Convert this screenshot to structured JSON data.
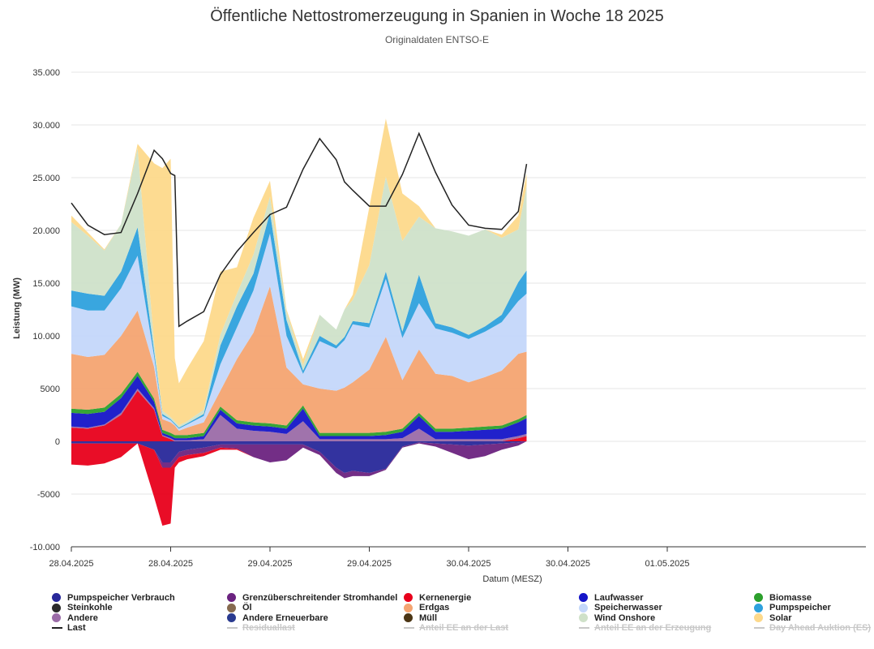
{
  "chart_data": {
    "type": "area",
    "title": "Öffentliche Nettostromerzeugung in Spanien in Woche 18 2025",
    "subtitle": "Originaldaten ENTSO-E",
    "xlabel": "Datum (MESZ)",
    "ylabel": "Leistung (MW)",
    "ylim": [
      -10000,
      35000
    ],
    "xlim": [
      0,
      96
    ],
    "y_ticks": [
      {
        "value": -10000,
        "label": "-10.000"
      },
      {
        "value": -5000,
        "label": "-5000"
      },
      {
        "value": 0,
        "label": "0"
      },
      {
        "value": 5000,
        "label": "5000"
      },
      {
        "value": 10000,
        "label": "10.000"
      },
      {
        "value": 15000,
        "label": "15.000"
      },
      {
        "value": 20000,
        "label": "20.000"
      },
      {
        "value": 25000,
        "label": "25.000"
      },
      {
        "value": 30000,
        "label": "30.000"
      },
      {
        "value": 35000,
        "label": "35.000"
      }
    ],
    "x_ticks": [
      {
        "value": 0,
        "label": "28.04.2025"
      },
      {
        "value": 12,
        "label": "28.04.2025"
      },
      {
        "value": 24,
        "label": "29.04.2025"
      },
      {
        "value": 36,
        "label": "29.04.2025"
      },
      {
        "value": 48,
        "label": "30.04.2025"
      },
      {
        "value": 60,
        "label": "30.04.2025"
      },
      {
        "value": 72,
        "label": "01.05.2025"
      }
    ],
    "x_hours": [
      0,
      2,
      4,
      6,
      8,
      10,
      11,
      12,
      12.5,
      13,
      14,
      16,
      18,
      20,
      22,
      24,
      26,
      28,
      30,
      32,
      33,
      34,
      36,
      38,
      40,
      42,
      44,
      46,
      48,
      50,
      52,
      54,
      55
    ],
    "series_positive": [
      {
        "name": "Kernenergie",
        "color": "#e8001b",
        "values": [
          1300,
          1200,
          1500,
          2500,
          4800,
          3000,
          500,
          200,
          0,
          0,
          0,
          0,
          0,
          0,
          0,
          0,
          0,
          0,
          0,
          0,
          0,
          0,
          0,
          0,
          0,
          0,
          0,
          0,
          0,
          0,
          0,
          300,
          500
        ]
      },
      {
        "name": "Andere",
        "color": "#9b6ca8",
        "values": [
          100,
          100,
          100,
          200,
          200,
          150,
          100,
          100,
          100,
          100,
          100,
          200,
          2500,
          1200,
          1000,
          900,
          700,
          1900,
          200,
          200,
          200,
          200,
          200,
          200,
          300,
          1200,
          200,
          200,
          200,
          200,
          200,
          200,
          200
        ]
      },
      {
        "name": "Laufwasser",
        "color": "#1515c8",
        "values": [
          1300,
          1300,
          1200,
          1400,
          1200,
          600,
          200,
          200,
          200,
          200,
          200,
          300,
          500,
          500,
          500,
          500,
          500,
          1200,
          300,
          300,
          300,
          300,
          300,
          400,
          600,
          1200,
          700,
          700,
          800,
          900,
          1000,
          1300,
          1500
        ]
      },
      {
        "name": "Biomasse",
        "color": "#2ca02c",
        "values": [
          400,
          400,
          400,
          400,
          400,
          300,
          300,
          300,
          300,
          300,
          300,
          300,
          300,
          300,
          300,
          300,
          300,
          300,
          300,
          300,
          300,
          300,
          300,
          300,
          300,
          300,
          300,
          300,
          300,
          300,
          300,
          300,
          300
        ]
      },
      {
        "name": "Erdgas",
        "color": "#f4a471",
        "values": [
          5200,
          5000,
          5000,
          5500,
          5800,
          3000,
          1000,
          1000,
          900,
          400,
          700,
          1000,
          1500,
          5800,
          8500,
          13000,
          5500,
          2000,
          4200,
          4000,
          4300,
          4800,
          6000,
          9000,
          4600,
          6000,
          5200,
          5000,
          4300,
          4700,
          5200,
          6200,
          6000
        ]
      },
      {
        "name": "Speicherwasser",
        "color": "#c4d7fa",
        "values": [
          4500,
          4400,
          4200,
          4500,
          5200,
          1000,
          300,
          200,
          100,
          200,
          300,
          600,
          2500,
          3000,
          4000,
          5000,
          3000,
          1000,
          4500,
          4000,
          4500,
          5500,
          4000,
          5500,
          4000,
          4400,
          4300,
          4100,
          4100,
          4300,
          4600,
          5000,
          5500
        ]
      },
      {
        "name": "Pumpspeicher",
        "color": "#2ea1dd",
        "values": [
          1500,
          1600,
          1400,
          1600,
          2700,
          500,
          200,
          100,
          100,
          100,
          100,
          200,
          1800,
          2000,
          1600,
          2000,
          1500,
          300,
          500,
          300,
          300,
          300,
          400,
          700,
          600,
          2700,
          500,
          500,
          400,
          500,
          700,
          1800,
          2200
        ]
      },
      {
        "name": "Wind Onshore",
        "color": "#cfe1c9",
        "values": [
          6500,
          5500,
          4300,
          4500,
          7500,
          800,
          300,
          200,
          200,
          200,
          200,
          400,
          1000,
          1200,
          1800,
          1500,
          800,
          500,
          2000,
          1500,
          2600,
          2000,
          5500,
          9000,
          8600,
          5500,
          9000,
          9100,
          9400,
          9200,
          7300,
          5000,
          8000
        ]
      },
      {
        "name": "Solar",
        "color": "#fdd98b",
        "values": [
          600,
          300,
          100,
          0,
          400,
          17000,
          23000,
          24500,
          6000,
          4000,
          5000,
          6500,
          6000,
          2500,
          3500,
          1500,
          200,
          600,
          0,
          0,
          0,
          500,
          5500,
          5500,
          4500,
          1000,
          0,
          0,
          0,
          0,
          300,
          1300,
          1200
        ]
      }
    ],
    "series_negative": [
      {
        "name": "Pumpspeicher Verbrauch",
        "color": "#28289a",
        "values": [
          -200,
          -200,
          -200,
          -200,
          -200,
          -800,
          -2000,
          -2000,
          -1500,
          -1000,
          -800,
          -600,
          -300,
          -300,
          -300,
          -300,
          -300,
          -300,
          -1000,
          -2500,
          -3000,
          -2800,
          -3000,
          -2600,
          -500,
          -100,
          -200,
          -300,
          -400,
          -300,
          -200,
          -100,
          0
        ]
      },
      {
        "name": "Grenzüberschreitender Stromhandel",
        "color": "#6b2380",
        "values": [
          0,
          0,
          0,
          0,
          0,
          0,
          -500,
          -500,
          -500,
          -500,
          -500,
          -500,
          -300,
          -400,
          -1200,
          -1700,
          -1500,
          -300,
          -300,
          -500,
          -500,
          -500,
          -300,
          -100,
          -100,
          -100,
          -300,
          -800,
          -1300,
          -1100,
          -600,
          -300,
          0
        ]
      },
      {
        "name": "Kernenergie",
        "color": "#e8001b",
        "values": [
          -2000,
          -2100,
          -1900,
          -1300,
          0,
          -4500,
          -5500,
          -5300,
          -500,
          -500,
          -400,
          -300,
          -200,
          -100,
          0,
          0,
          0,
          0,
          0,
          0,
          0,
          0,
          0,
          0,
          0,
          0,
          0,
          0,
          0,
          0,
          0,
          0,
          0
        ]
      }
    ],
    "last_line": {
      "name": "Last",
      "color": "#222222",
      "values": [
        22600,
        20500,
        19600,
        19800,
        23500,
        27600,
        26800,
        25400,
        25200,
        10900,
        11400,
        12300,
        15800,
        18000,
        19800,
        21500,
        22200,
        25800,
        28700,
        26700,
        24600,
        23800,
        22300,
        22300,
        25300,
        29200,
        25500,
        22400,
        20500,
        20200,
        20100,
        21800,
        26300
      ]
    },
    "legend": [
      {
        "label": "Pumpspeicher Verbrauch",
        "color": "#28289a",
        "kind": "dot",
        "visible": true
      },
      {
        "label": "Grenzüberschreitender Stromhandel",
        "color": "#6b2380",
        "kind": "dot",
        "visible": true
      },
      {
        "label": "Kernenergie",
        "color": "#e8001b",
        "kind": "dot",
        "visible": true
      },
      {
        "label": "Laufwasser",
        "color": "#1515c8",
        "kind": "dot",
        "visible": true
      },
      {
        "label": "Biomasse",
        "color": "#2ca02c",
        "kind": "dot",
        "visible": true
      },
      {
        "label": "Steinkohle",
        "color": "#2b2b2b",
        "kind": "dot",
        "visible": true
      },
      {
        "label": "Öl",
        "color": "#866a4f",
        "kind": "dot",
        "visible": true
      },
      {
        "label": "Erdgas",
        "color": "#f4a471",
        "kind": "dot",
        "visible": true
      },
      {
        "label": "Speicherwasser",
        "color": "#c4d7fa",
        "kind": "dot",
        "visible": true
      },
      {
        "label": "Pumpspeicher",
        "color": "#2ea1dd",
        "kind": "dot",
        "visible": true
      },
      {
        "label": "Andere",
        "color": "#9b6ca8",
        "kind": "dot",
        "visible": true
      },
      {
        "label": "Andere Erneuerbare",
        "color": "#2a3a8f",
        "kind": "dot",
        "visible": true
      },
      {
        "label": "Müll",
        "color": "#4b3514",
        "kind": "dot",
        "visible": true
      },
      {
        "label": "Wind Onshore",
        "color": "#cfe1c9",
        "kind": "dot",
        "visible": true
      },
      {
        "label": "Solar",
        "color": "#fdd98b",
        "kind": "dot",
        "visible": true
      },
      {
        "label": "Last",
        "color": "#222222",
        "kind": "line",
        "visible": true
      },
      {
        "label": "Residuallast",
        "color": "#c8c8c8",
        "kind": "line",
        "visible": false
      },
      {
        "label": "Anteil EE an der Last",
        "color": "#c8c8c8",
        "kind": "line",
        "visible": false
      },
      {
        "label": "Anteil EE an der Erzeugung",
        "color": "#c8c8c8",
        "kind": "line",
        "visible": false
      },
      {
        "label": "Day Ahead Auktion (ES)",
        "color": "#c8c8c8",
        "kind": "line",
        "visible": false
      }
    ]
  }
}
